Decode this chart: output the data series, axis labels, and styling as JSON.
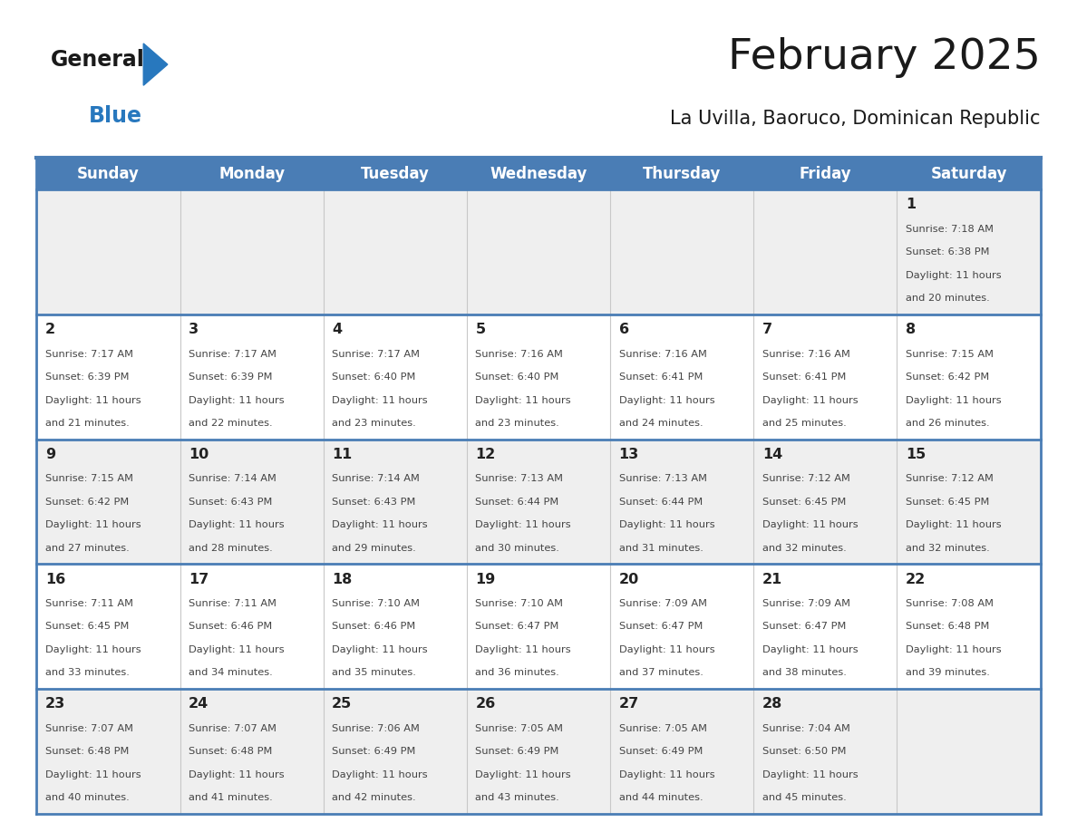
{
  "title": "February 2025",
  "subtitle": "La Uvilla, Baoruco, Dominican Republic",
  "days_of_week": [
    "Sunday",
    "Monday",
    "Tuesday",
    "Wednesday",
    "Thursday",
    "Friday",
    "Saturday"
  ],
  "header_bg": "#4a7db5",
  "header_text": "#ffffff",
  "row_bg_odd": "#efefef",
  "row_bg_even": "#ffffff",
  "separator_color": "#4a7db5",
  "day_num_color": "#222222",
  "info_text_color": "#444444",
  "background_color": "#ffffff",
  "calendar_data": [
    {
      "day": 1,
      "week_row": 0,
      "col": 6,
      "sunrise": "7:18 AM",
      "sunset": "6:38 PM",
      "daylight_h": "11 hours",
      "daylight_m": "20 minutes."
    },
    {
      "day": 2,
      "week_row": 1,
      "col": 0,
      "sunrise": "7:17 AM",
      "sunset": "6:39 PM",
      "daylight_h": "11 hours",
      "daylight_m": "21 minutes."
    },
    {
      "day": 3,
      "week_row": 1,
      "col": 1,
      "sunrise": "7:17 AM",
      "sunset": "6:39 PM",
      "daylight_h": "11 hours",
      "daylight_m": "22 minutes."
    },
    {
      "day": 4,
      "week_row": 1,
      "col": 2,
      "sunrise": "7:17 AM",
      "sunset": "6:40 PM",
      "daylight_h": "11 hours",
      "daylight_m": "23 minutes."
    },
    {
      "day": 5,
      "week_row": 1,
      "col": 3,
      "sunrise": "7:16 AM",
      "sunset": "6:40 PM",
      "daylight_h": "11 hours",
      "daylight_m": "23 minutes."
    },
    {
      "day": 6,
      "week_row": 1,
      "col": 4,
      "sunrise": "7:16 AM",
      "sunset": "6:41 PM",
      "daylight_h": "11 hours",
      "daylight_m": "24 minutes."
    },
    {
      "day": 7,
      "week_row": 1,
      "col": 5,
      "sunrise": "7:16 AM",
      "sunset": "6:41 PM",
      "daylight_h": "11 hours",
      "daylight_m": "25 minutes."
    },
    {
      "day": 8,
      "week_row": 1,
      "col": 6,
      "sunrise": "7:15 AM",
      "sunset": "6:42 PM",
      "daylight_h": "11 hours",
      "daylight_m": "26 minutes."
    },
    {
      "day": 9,
      "week_row": 2,
      "col": 0,
      "sunrise": "7:15 AM",
      "sunset": "6:42 PM",
      "daylight_h": "11 hours",
      "daylight_m": "27 minutes."
    },
    {
      "day": 10,
      "week_row": 2,
      "col": 1,
      "sunrise": "7:14 AM",
      "sunset": "6:43 PM",
      "daylight_h": "11 hours",
      "daylight_m": "28 minutes."
    },
    {
      "day": 11,
      "week_row": 2,
      "col": 2,
      "sunrise": "7:14 AM",
      "sunset": "6:43 PM",
      "daylight_h": "11 hours",
      "daylight_m": "29 minutes."
    },
    {
      "day": 12,
      "week_row": 2,
      "col": 3,
      "sunrise": "7:13 AM",
      "sunset": "6:44 PM",
      "daylight_h": "11 hours",
      "daylight_m": "30 minutes."
    },
    {
      "day": 13,
      "week_row": 2,
      "col": 4,
      "sunrise": "7:13 AM",
      "sunset": "6:44 PM",
      "daylight_h": "11 hours",
      "daylight_m": "31 minutes."
    },
    {
      "day": 14,
      "week_row": 2,
      "col": 5,
      "sunrise": "7:12 AM",
      "sunset": "6:45 PM",
      "daylight_h": "11 hours",
      "daylight_m": "32 minutes."
    },
    {
      "day": 15,
      "week_row": 2,
      "col": 6,
      "sunrise": "7:12 AM",
      "sunset": "6:45 PM",
      "daylight_h": "11 hours",
      "daylight_m": "32 minutes."
    },
    {
      "day": 16,
      "week_row": 3,
      "col": 0,
      "sunrise": "7:11 AM",
      "sunset": "6:45 PM",
      "daylight_h": "11 hours",
      "daylight_m": "33 minutes."
    },
    {
      "day": 17,
      "week_row": 3,
      "col": 1,
      "sunrise": "7:11 AM",
      "sunset": "6:46 PM",
      "daylight_h": "11 hours",
      "daylight_m": "34 minutes."
    },
    {
      "day": 18,
      "week_row": 3,
      "col": 2,
      "sunrise": "7:10 AM",
      "sunset": "6:46 PM",
      "daylight_h": "11 hours",
      "daylight_m": "35 minutes."
    },
    {
      "day": 19,
      "week_row": 3,
      "col": 3,
      "sunrise": "7:10 AM",
      "sunset": "6:47 PM",
      "daylight_h": "11 hours",
      "daylight_m": "36 minutes."
    },
    {
      "day": 20,
      "week_row": 3,
      "col": 4,
      "sunrise": "7:09 AM",
      "sunset": "6:47 PM",
      "daylight_h": "11 hours",
      "daylight_m": "37 minutes."
    },
    {
      "day": 21,
      "week_row": 3,
      "col": 5,
      "sunrise": "7:09 AM",
      "sunset": "6:47 PM",
      "daylight_h": "11 hours",
      "daylight_m": "38 minutes."
    },
    {
      "day": 22,
      "week_row": 3,
      "col": 6,
      "sunrise": "7:08 AM",
      "sunset": "6:48 PM",
      "daylight_h": "11 hours",
      "daylight_m": "39 minutes."
    },
    {
      "day": 23,
      "week_row": 4,
      "col": 0,
      "sunrise": "7:07 AM",
      "sunset": "6:48 PM",
      "daylight_h": "11 hours",
      "daylight_m": "40 minutes."
    },
    {
      "day": 24,
      "week_row": 4,
      "col": 1,
      "sunrise": "7:07 AM",
      "sunset": "6:48 PM",
      "daylight_h": "11 hours",
      "daylight_m": "41 minutes."
    },
    {
      "day": 25,
      "week_row": 4,
      "col": 2,
      "sunrise": "7:06 AM",
      "sunset": "6:49 PM",
      "daylight_h": "11 hours",
      "daylight_m": "42 minutes."
    },
    {
      "day": 26,
      "week_row": 4,
      "col": 3,
      "sunrise": "7:05 AM",
      "sunset": "6:49 PM",
      "daylight_h": "11 hours",
      "daylight_m": "43 minutes."
    },
    {
      "day": 27,
      "week_row": 4,
      "col": 4,
      "sunrise": "7:05 AM",
      "sunset": "6:49 PM",
      "daylight_h": "11 hours",
      "daylight_m": "44 minutes."
    },
    {
      "day": 28,
      "week_row": 4,
      "col": 5,
      "sunrise": "7:04 AM",
      "sunset": "6:50 PM",
      "daylight_h": "11 hours",
      "daylight_m": "45 minutes."
    }
  ],
  "num_week_rows": 5
}
